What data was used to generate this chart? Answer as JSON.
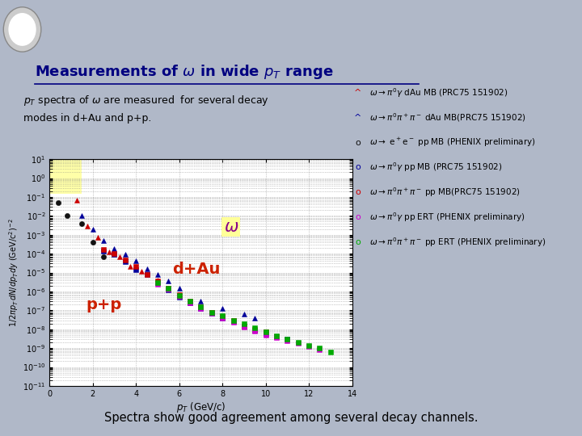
{
  "title": "Measurements of $\\omega$ in wide $p_T$ range",
  "subtitle_line1": "$p_T$ spectra of $\\omega$ are measured  for several decay",
  "subtitle_line2": "modes in d+Au and p+p.",
  "footer": "Spectra show good agreement among several decay channels.",
  "xlabel": "$p_T$ (GeV/c)",
  "ylabel": "$1/2\\pi p_T\\, dN/dp_T dy$ (GeV/c$^2$)$^{-2}$",
  "ylim_log": [
    -11,
    1
  ],
  "xlim": [
    0,
    14
  ],
  "bg_color": "#b0b8c8",
  "plot_bg": "#ffffff",
  "title_color": "#000080",
  "footer_bg": "#ffffcc",
  "series": [
    {
      "name": "dAu_pi0gamma",
      "color": "#cc0000",
      "marker": "^",
      "x": [
        1.25,
        1.75,
        2.25,
        2.75,
        3.25,
        3.75,
        4.25,
        5.0,
        5.5,
        6.0
      ],
      "y": [
        0.07,
        0.003,
        0.0007,
        0.00012,
        7e-05,
        2e-05,
        1.2e-05,
        4e-06,
        1.5e-06,
        6e-07
      ]
    },
    {
      "name": "dAu_pi0pipi",
      "color": "#000099",
      "marker": "^",
      "x": [
        1.5,
        2.0,
        2.5,
        3.0,
        3.5,
        4.0,
        4.5,
        5.0,
        5.5,
        6.0,
        7.0,
        8.0,
        9.0,
        9.5
      ],
      "y": [
        0.01,
        0.002,
        0.0005,
        0.00018,
        9e-05,
        4e-05,
        1.6e-05,
        8e-06,
        3.5e-06,
        1.5e-06,
        3e-07,
        1.2e-07,
        6e-08,
        4e-08
      ]
    },
    {
      "name": "pp_ee",
      "color": "#111111",
      "marker": "o",
      "x": [
        0.4,
        0.8,
        1.5,
        2.0,
        2.5
      ],
      "y": [
        0.05,
        0.01,
        0.004,
        0.0004,
        7e-05
      ]
    },
    {
      "name": "pp_pi0gamma_MB",
      "color": "#000099",
      "marker": "s",
      "x": [
        2.5,
        3.0,
        3.5,
        4.0,
        4.5,
        5.0,
        5.5,
        6.0,
        6.5,
        7.0,
        7.5,
        8.0,
        8.5,
        9.0,
        9.5,
        10.0,
        10.5,
        11.0
      ],
      "y": [
        0.00014,
        9e-05,
        3.8e-05,
        1.4e-05,
        8e-06,
        2.8e-06,
        1.2e-06,
        5e-07,
        2.5e-07,
        1.2e-07,
        7e-08,
        4e-08,
        2.5e-08,
        1.5e-08,
        9e-09,
        6e-09,
        4e-09,
        3e-09
      ]
    },
    {
      "name": "pp_pi0pipi_MB",
      "color": "#cc0000",
      "marker": "s",
      "x": [
        2.5,
        3.0,
        3.5,
        4.0,
        4.5,
        5.0,
        5.5,
        6.0,
        6.5,
        7.0,
        7.5,
        8.0,
        8.5,
        9.0,
        9.5,
        10.0,
        10.5
      ],
      "y": [
        0.00016,
        0.0001,
        4.5e-05,
        2e-05,
        8e-06,
        3.5e-06,
        1.5e-06,
        7e-07,
        3e-07,
        1.5e-07,
        8e-08,
        4.5e-08,
        2.8e-08,
        1.5e-08,
        1e-08,
        7e-09,
        4e-09
      ]
    },
    {
      "name": "pp_pi0gamma_ERT",
      "color": "#cc00cc",
      "marker": "s",
      "x": [
        5.0,
        5.5,
        6.0,
        6.5,
        7.0,
        7.5,
        8.0,
        8.5,
        9.0,
        9.5,
        10.0,
        10.5,
        11.0,
        11.5,
        12.0,
        12.5
      ],
      "y": [
        2.5e-06,
        1.3e-06,
        5.5e-07,
        2.5e-07,
        1.3e-07,
        7e-08,
        4e-08,
        2.3e-08,
        1.3e-08,
        8e-09,
        5e-09,
        3.5e-09,
        2.5e-09,
        1.8e-09,
        1.2e-09,
        8e-10
      ]
    },
    {
      "name": "pp_pi0pipi_ERT",
      "color": "#00aa00",
      "marker": "s",
      "x": [
        5.0,
        5.5,
        6.0,
        6.5,
        7.0,
        7.5,
        8.0,
        8.5,
        9.0,
        9.5,
        10.0,
        10.5,
        11.0,
        11.5,
        12.0,
        12.5,
        13.0
      ],
      "y": [
        2.8e-06,
        1.4e-06,
        6e-07,
        3e-07,
        1.5e-07,
        8e-08,
        5e-08,
        3e-08,
        2e-08,
        1.2e-08,
        7e-09,
        4.5e-09,
        3e-09,
        2e-09,
        1.4e-09,
        1e-09,
        6e-10
      ]
    }
  ],
  "legend_entries": [
    {
      "color": "#cc0000",
      "marker": "^",
      "text": "$\\omega{\\to}\\pi^0\\gamma$ dAu MB (PRC75 151902)"
    },
    {
      "color": "#000099",
      "marker": "^",
      "text": "$\\omega{\\to}\\pi^0\\pi^+\\pi^-$ dAu MB(PRC75 151902)"
    },
    {
      "color": "#111111",
      "marker": "o",
      "text": "$\\omega{\\to}$ e$^+$e$^-$ pp MB (PHENIX preliminary)"
    },
    {
      "color": "#000099",
      "marker": "o",
      "text": "$\\omega{\\to}\\pi^0\\gamma$ pp MB (PRC75 151902)"
    },
    {
      "color": "#cc0000",
      "marker": "o",
      "text": "$\\omega{\\to}\\pi^0\\pi^+\\pi^-$ pp MB(PRC75 151902)"
    },
    {
      "color": "#cc00cc",
      "marker": "o",
      "text": "$\\omega{\\to}\\pi^0\\gamma$ pp ERT (PHENIX preliminary)"
    },
    {
      "color": "#00aa00",
      "marker": "o",
      "text": "$\\omega{\\to}\\pi^0\\pi^+\\pi^-$ pp ERT (PHENIX preliminary)"
    }
  ]
}
